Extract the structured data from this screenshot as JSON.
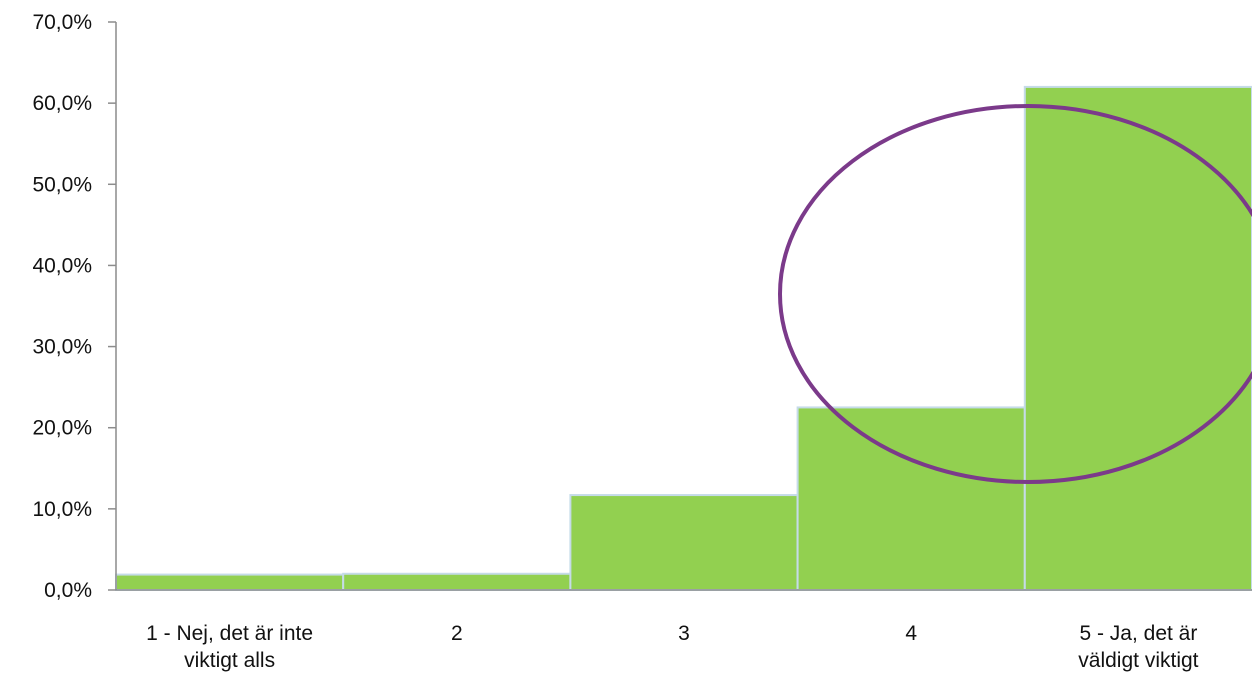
{
  "chart_data": {
    "type": "bar",
    "title": "",
    "xlabel": "",
    "ylabel": "",
    "categories": [
      [
        "1 - Nej, det är inte",
        "viktigt alls"
      ],
      [
        "2"
      ],
      [
        "3"
      ],
      [
        "4"
      ],
      [
        "5 - Ja, det är",
        "väldigt viktigt"
      ]
    ],
    "values": [
      1.9,
      2.0,
      11.7,
      22.5,
      62.0
    ],
    "ylim": [
      0,
      70
    ],
    "yticks": [
      0,
      10,
      20,
      30,
      40,
      50,
      60,
      70
    ],
    "ytick_labels": [
      "0,0%",
      "10,0%",
      "20,0%",
      "30,0%",
      "40,0%",
      "50,0%",
      "60,0%",
      "70,0%"
    ],
    "bar_color": "#92d050",
    "bar_edge_color": "#c5dbe8",
    "grid": false,
    "legend": "none",
    "annotation": {
      "shape": "ellipse",
      "color": "#7b3a8a",
      "around": [
        "4",
        "5 - Ja, det är väldigt viktigt"
      ]
    }
  }
}
